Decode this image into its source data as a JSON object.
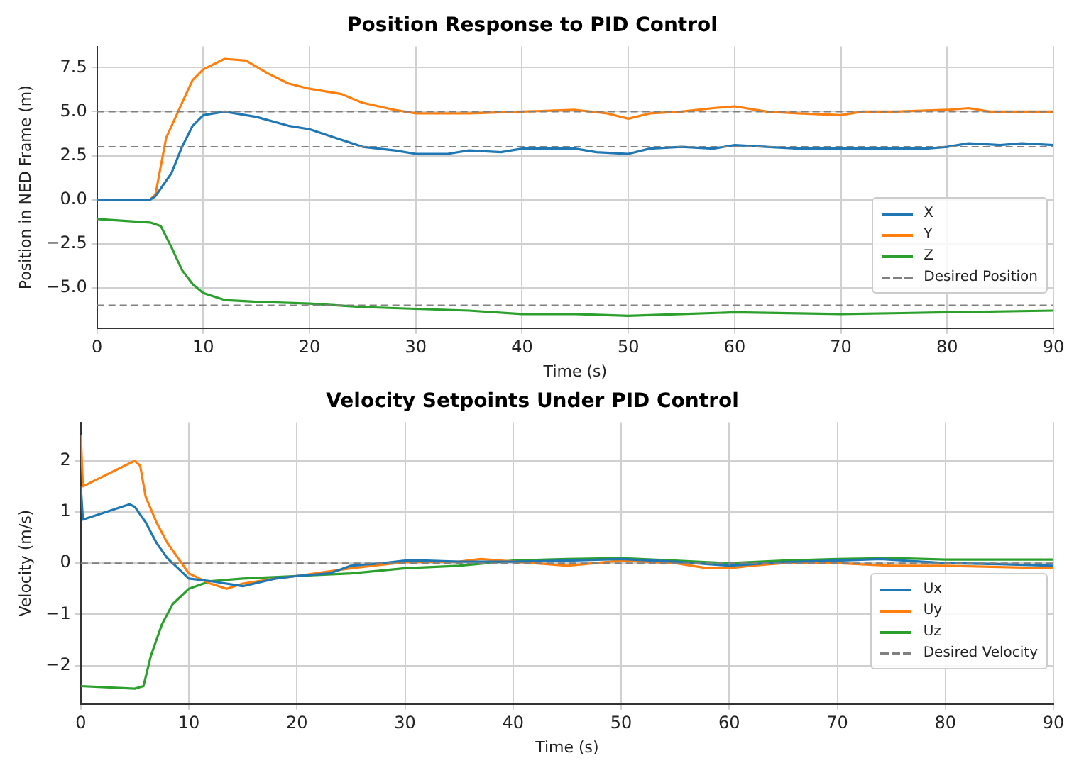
{
  "chart_data": [
    {
      "type": "line",
      "title": "Position Response to PID Control",
      "xlabel": "Time (s)",
      "ylabel": "Position in NED Frame (m)",
      "xlim": [
        0,
        90
      ],
      "xticks": [
        0,
        10,
        20,
        30,
        40,
        50,
        60,
        70,
        80,
        90
      ],
      "ylim": [
        -7.3,
        8.7
      ],
      "yticks": [
        {
          "value": -5,
          "label": "−5.0"
        },
        {
          "value": -2.5,
          "label": "−2.5"
        },
        {
          "value": 0,
          "label": "0.0"
        },
        2.5,
        {
          "value": 5,
          "label": "5.0"
        },
        7.5
      ],
      "grid": true,
      "legend": "bottom right",
      "marker": "none",
      "line_style": "solid",
      "series": [
        {
          "name": "X",
          "color": "#1f77b4",
          "x": [
            0,
            5,
            5.5,
            7,
            8,
            9,
            10,
            12,
            15,
            18,
            20,
            22,
            25,
            28,
            30,
            33,
            35,
            38,
            40,
            45,
            47,
            50,
            52,
            55,
            58,
            60,
            63,
            66,
            70,
            75,
            78,
            80,
            82,
            85,
            87,
            90
          ],
          "values": [
            0,
            0,
            0.2,
            1.5,
            3,
            4.2,
            4.8,
            5,
            4.7,
            4.2,
            4,
            3.6,
            3,
            2.8,
            2.6,
            2.6,
            2.8,
            2.7,
            2.9,
            2.9,
            2.7,
            2.6,
            2.9,
            3,
            2.9,
            3.1,
            3,
            2.9,
            2.9,
            2.9,
            2.9,
            3,
            3.2,
            3.1,
            3.2,
            3.1
          ]
        },
        {
          "name": "Y",
          "color": "#ff7f0e",
          "x": [
            0,
            5,
            5.5,
            6.5,
            8,
            9,
            10,
            12,
            14,
            16,
            18,
            20,
            23,
            25,
            28,
            30,
            35,
            40,
            45,
            48,
            50,
            52,
            55,
            58,
            60,
            63,
            66,
            70,
            72,
            75,
            80,
            82,
            84,
            90
          ],
          "values": [
            0,
            0,
            0.3,
            3.5,
            5.5,
            6.8,
            7.4,
            8,
            7.9,
            7.2,
            6.6,
            6.3,
            6,
            5.5,
            5.1,
            4.9,
            4.9,
            5,
            5.1,
            4.9,
            4.6,
            4.9,
            5,
            5.2,
            5.3,
            5,
            4.9,
            4.8,
            5,
            5,
            5.1,
            5.2,
            5,
            5
          ]
        },
        {
          "name": "Z",
          "color": "#2ca02c",
          "x": [
            0,
            5,
            6,
            7,
            8,
            9,
            10,
            12,
            15,
            20,
            25,
            30,
            35,
            40,
            45,
            50,
            55,
            60,
            70,
            80,
            90
          ],
          "values": [
            -1.1,
            -1.3,
            -1.5,
            -2.7,
            -4,
            -4.8,
            -5.3,
            -5.7,
            -5.8,
            -5.9,
            -6.1,
            -6.2,
            -6.3,
            -6.5,
            -6.5,
            -6.6,
            -6.5,
            -6.4,
            -6.5,
            -6.4,
            -6.3
          ]
        }
      ],
      "ref_lines": [
        {
          "axis": "y",
          "value": 5,
          "label": "Desired Position",
          "color": "#808080",
          "line_style": "dashed"
        },
        {
          "axis": "y",
          "value": 3,
          "color": "#808080",
          "line_style": "dashed"
        },
        {
          "axis": "y",
          "value": -6,
          "color": "#808080",
          "line_style": "dashed"
        }
      ]
    },
    {
      "type": "line",
      "title": "Velocity Setpoints Under PID Control",
      "xlabel": "Time (s)",
      "ylabel": "Velocity (m/s)",
      "xlim": [
        0,
        90
      ],
      "xticks": [
        0,
        10,
        20,
        30,
        40,
        50,
        60,
        70,
        80,
        90
      ],
      "ylim": [
        -2.75,
        2.75
      ],
      "yticks": [
        {
          "value": -2,
          "label": "−2"
        },
        {
          "value": -1,
          "label": "−1"
        },
        0,
        1,
        2
      ],
      "grid": true,
      "legend": "bottom right",
      "marker": "none",
      "line_style": "solid",
      "series": [
        {
          "name": "Ux",
          "color": "#1f77b4",
          "x": [
            0,
            0.2,
            4.5,
            5,
            6,
            7,
            8,
            9,
            10,
            12,
            15,
            18,
            20,
            23,
            25,
            28,
            30,
            32,
            35,
            40,
            45,
            50,
            55,
            60,
            65,
            70,
            74,
            80,
            85,
            90
          ],
          "values": [
            1.5,
            0.85,
            1.15,
            1.1,
            0.8,
            0.4,
            0.1,
            -0.1,
            -0.3,
            -0.35,
            -0.45,
            -0.3,
            -0.25,
            -0.2,
            -0.05,
            0,
            0.05,
            0.05,
            0.03,
            0.03,
            0.05,
            0.08,
            0.03,
            -0.05,
            0.02,
            0.05,
            0.08,
            0,
            -0.02,
            -0.05
          ]
        },
        {
          "name": "Uy",
          "color": "#ff7f0e",
          "x": [
            0,
            0.2,
            5,
            5.5,
            6,
            7,
            8,
            9,
            10,
            12,
            13.5,
            15,
            18,
            20,
            25,
            30,
            35,
            37,
            45,
            50,
            55,
            58,
            60,
            62,
            65,
            70,
            75,
            80,
            90
          ],
          "values": [
            2.5,
            1.5,
            2,
            1.9,
            1.3,
            0.8,
            0.4,
            0.1,
            -0.2,
            -0.4,
            -0.5,
            -0.4,
            -0.3,
            -0.25,
            -0.1,
            0.02,
            0.03,
            0.08,
            -0.05,
            0.05,
            0,
            -0.1,
            -0.1,
            -0.05,
            0,
            0,
            -0.05,
            -0.05,
            -0.1
          ]
        },
        {
          "name": "Uz",
          "color": "#2ca02c",
          "x": [
            0,
            5,
            5.8,
            6.5,
            7.5,
            8.5,
            10,
            12,
            15,
            20,
            25,
            30,
            35,
            40,
            45,
            50,
            55,
            60,
            65,
            70,
            75,
            80,
            90
          ],
          "values": [
            -2.4,
            -2.45,
            -2.4,
            -1.8,
            -1.2,
            -0.8,
            -0.5,
            -0.35,
            -0.3,
            -0.25,
            -0.2,
            -0.1,
            -0.05,
            0.05,
            0.08,
            0.1,
            0.05,
            0,
            0.05,
            0.08,
            0.1,
            0.07,
            0.07
          ]
        }
      ],
      "ref_lines": [
        {
          "axis": "y",
          "value": 0,
          "label": "Desired Velocity",
          "color": "#808080",
          "line_style": "dashed"
        }
      ]
    }
  ]
}
